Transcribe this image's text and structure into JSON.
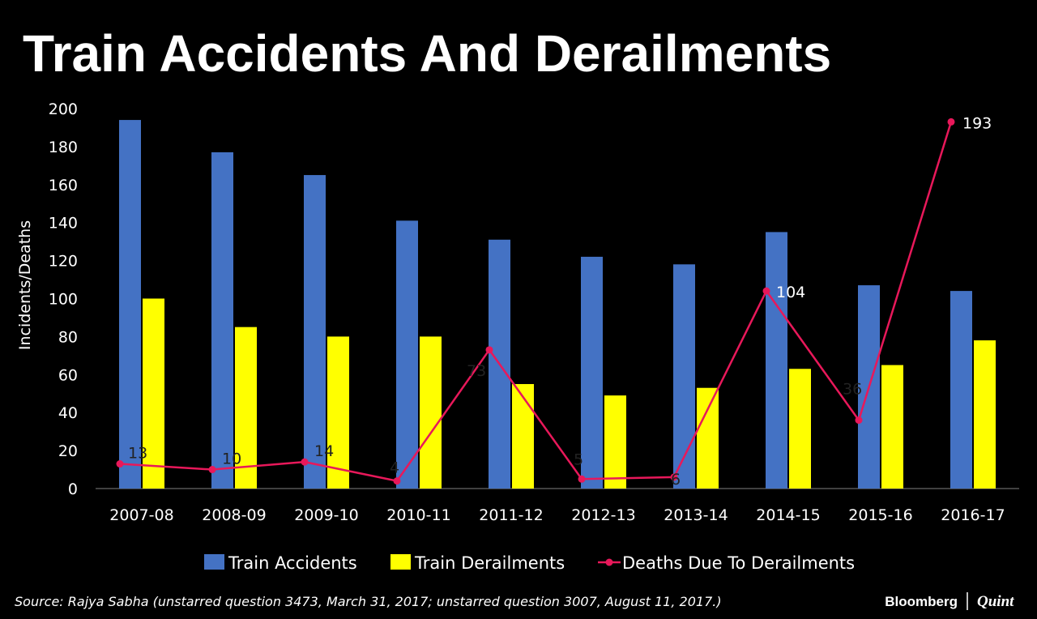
{
  "chart_data": {
    "type": "bar",
    "title": "Train Accidents And Derailments",
    "ylabel": "Incidents/Deaths",
    "xlabel": "",
    "ylim": [
      0,
      200
    ],
    "yticks": [
      0,
      20,
      40,
      60,
      80,
      100,
      120,
      140,
      160,
      180,
      200
    ],
    "categories": [
      "2007-08",
      "2008-09",
      "2009-10",
      "2010-11",
      "2011-12",
      "2012-13",
      "2013-14",
      "2014-15",
      "2015-16",
      "2016-17"
    ],
    "series": [
      {
        "name": "Train Accidents",
        "kind": "bar",
        "color": "#4472C4",
        "values": [
          194,
          177,
          165,
          141,
          131,
          122,
          118,
          135,
          107,
          104
        ]
      },
      {
        "name": "Train Derailments",
        "kind": "bar",
        "color": "#FFFF00",
        "values": [
          100,
          85,
          80,
          80,
          55,
          49,
          53,
          63,
          65,
          78
        ]
      },
      {
        "name": "Deaths Due To Derailments",
        "kind": "line",
        "color": "#E8185A",
        "values": [
          13,
          10,
          14,
          4,
          73,
          5,
          6,
          104,
          36,
          193
        ],
        "data_labels": [
          "13",
          "10",
          "14",
          "4",
          "73",
          "5",
          "6",
          "104",
          "36",
          "193"
        ]
      }
    ],
    "legend_position": "bottom"
  },
  "source": "Source: Rajya Sabha (unstarred question 3473, March 31, 2017; unstarred question 3007, August 11, 2017.)",
  "branding": {
    "left": "Bloomberg",
    "right": "Quint"
  }
}
